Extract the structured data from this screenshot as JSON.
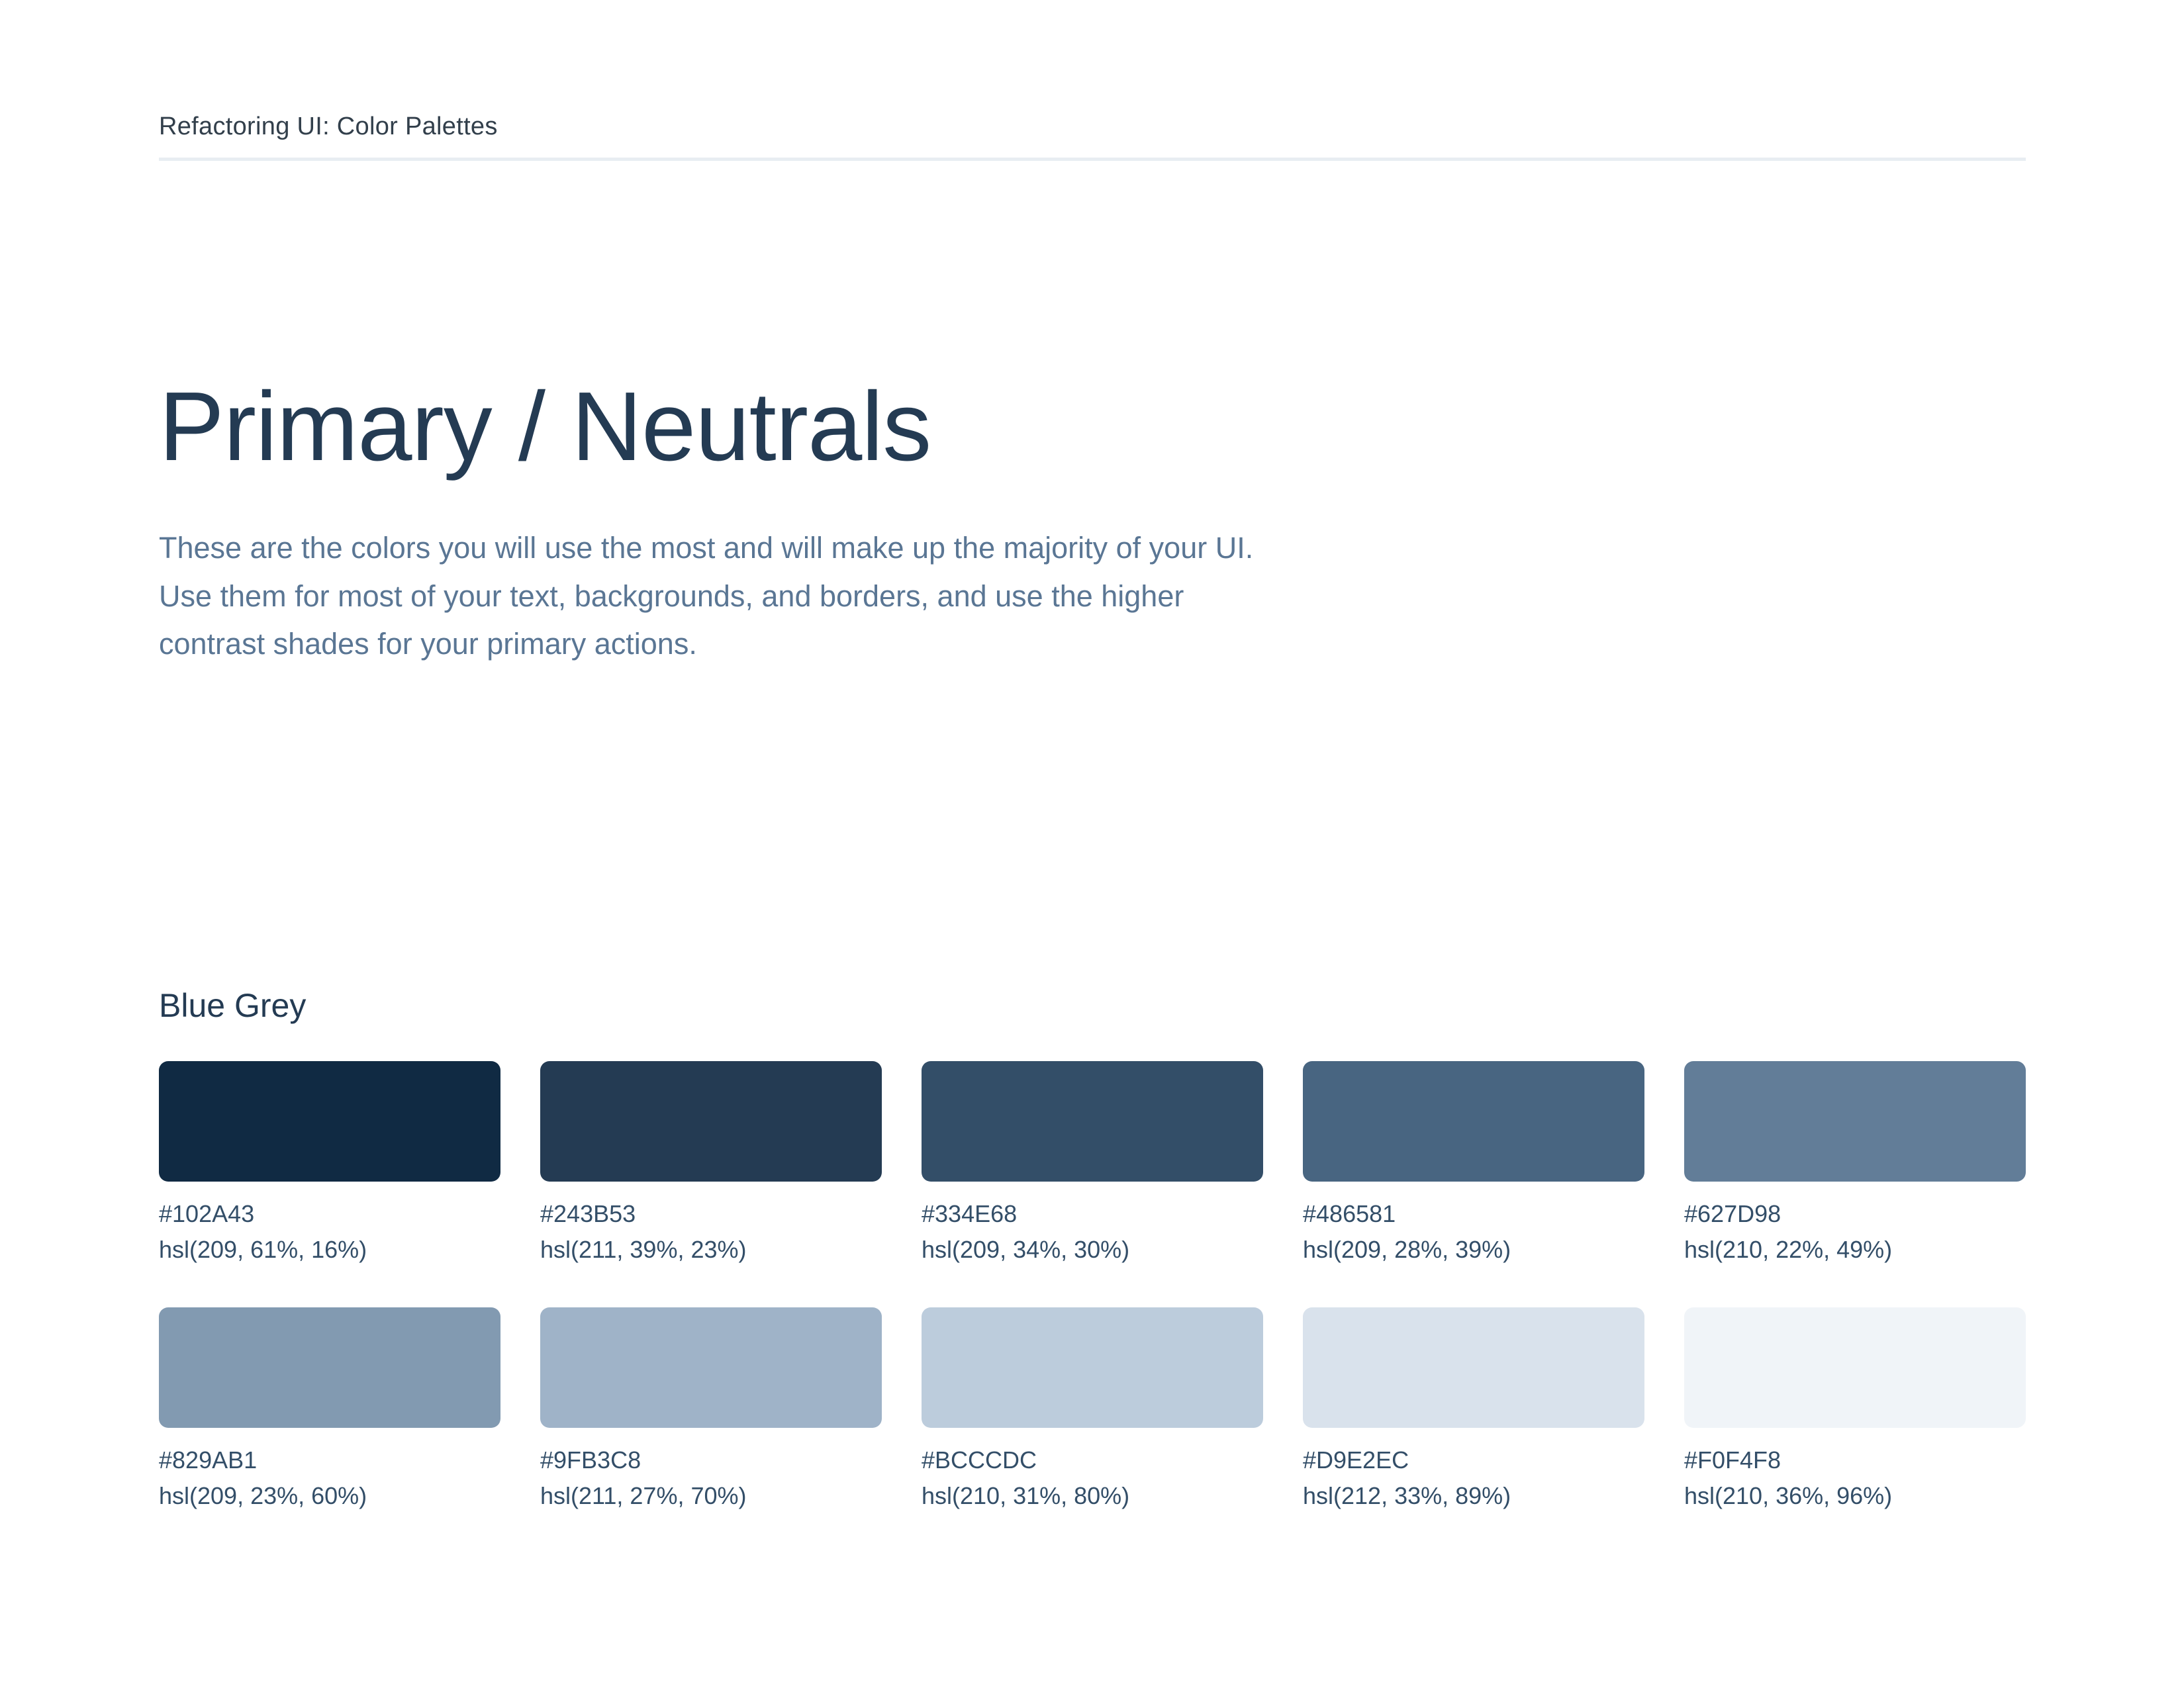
{
  "header": {
    "title": "Refactoring UI: Color Palettes"
  },
  "page": {
    "title": "Primary / Neutrals",
    "description": "These are the colors you will use the most and will make up the majority of your UI. Use them for most of your text, backgrounds, and borders, and use the higher contrast shades for your primary actions."
  },
  "palette": {
    "group_name": "Blue Grey",
    "swatches": [
      {
        "hex": "#102A43",
        "hsl": "hsl(209, 61%, 16%)"
      },
      {
        "hex": "#243B53",
        "hsl": "hsl(211, 39%, 23%)"
      },
      {
        "hex": "#334E68",
        "hsl": "hsl(209, 34%, 30%)"
      },
      {
        "hex": "#486581",
        "hsl": "hsl(209, 28%, 39%)"
      },
      {
        "hex": "#627D98",
        "hsl": "hsl(210, 22%, 49%)"
      },
      {
        "hex": "#829AB1",
        "hsl": "hsl(209, 23%, 60%)"
      },
      {
        "hex": "#9FB3C8",
        "hsl": "hsl(211, 27%, 70%)"
      },
      {
        "hex": "#BCCCDC",
        "hsl": "hsl(210, 31%, 80%)"
      },
      {
        "hex": "#D9E2EC",
        "hsl": "hsl(212, 33%, 89%)"
      },
      {
        "hex": "#F0F4F8",
        "hsl": "hsl(210, 36%, 96%)"
      }
    ]
  },
  "colors": {
    "background": "#FFFFFF",
    "header_text": "#323F4B",
    "title_text": "#243B53",
    "body_text": "#5A7694",
    "label_text": "#334E68",
    "divider": "#E8EDF2"
  }
}
